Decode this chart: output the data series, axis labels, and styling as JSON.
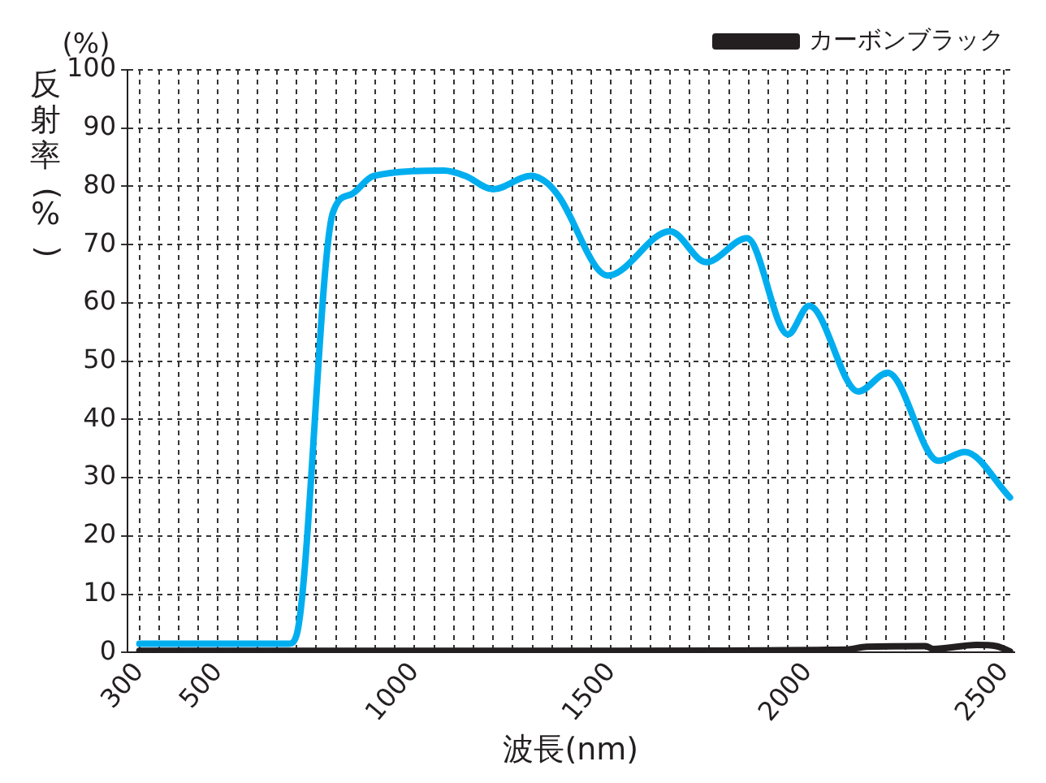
{
  "chart_data": {
    "type": "line",
    "ylabel": "反射率(%)",
    "xlabel": "波長(nm)",
    "annotations": [
      "(%)"
    ],
    "xlim": [
      270,
      2525
    ],
    "ylim": [
      0,
      100
    ],
    "yticks": [
      0,
      10,
      20,
      30,
      40,
      50,
      60,
      70,
      80,
      90,
      100
    ],
    "xticks": [
      300,
      {
        "value": 350,
        "label": null
      },
      {
        "value": 400,
        "label": null
      },
      {
        "value": 450,
        "label": null
      },
      500,
      {
        "value": 550,
        "label": null
      },
      {
        "value": 600,
        "label": null
      },
      {
        "value": 650,
        "label": null
      },
      {
        "value": 700,
        "label": null
      },
      {
        "value": 750,
        "label": null
      },
      {
        "value": 800,
        "label": null
      },
      {
        "value": 850,
        "label": null
      },
      {
        "value": 900,
        "label": null
      },
      {
        "value": 950,
        "label": null
      },
      1000,
      {
        "value": 1050,
        "label": null
      },
      {
        "value": 1100,
        "label": null
      },
      {
        "value": 1150,
        "label": null
      },
      {
        "value": 1200,
        "label": null
      },
      {
        "value": 1250,
        "label": null
      },
      {
        "value": 1300,
        "label": null
      },
      {
        "value": 1350,
        "label": null
      },
      {
        "value": 1400,
        "label": null
      },
      {
        "value": 1450,
        "label": null
      },
      1500,
      {
        "value": 1550,
        "label": null
      },
      {
        "value": 1600,
        "label": null
      },
      {
        "value": 1650,
        "label": null
      },
      {
        "value": 1700,
        "label": null
      },
      {
        "value": 1750,
        "label": null
      },
      {
        "value": 1800,
        "label": null
      },
      {
        "value": 1850,
        "label": null
      },
      {
        "value": 1900,
        "label": null
      },
      {
        "value": 1950,
        "label": null
      },
      2000,
      {
        "value": 2050,
        "label": null
      },
      {
        "value": 2100,
        "label": null
      },
      {
        "value": 2150,
        "label": null
      },
      {
        "value": 2200,
        "label": null
      },
      {
        "value": 2250,
        "label": null
      },
      {
        "value": 2300,
        "label": null
      },
      {
        "value": 2350,
        "label": null
      },
      {
        "value": 2400,
        "label": null
      },
      {
        "value": 2450,
        "label": null
      },
      2500
    ],
    "grid": true,
    "line_style": "solid",
    "marker": "none",
    "legend": "top right",
    "series": [
      {
        "color": "#00aeef",
        "x": [
          300,
          680,
          700,
          792,
          838,
          896,
          1075,
          1129,
          1200,
          1296,
          1337,
          1367,
          1492,
          1650,
          1742,
          1846,
          1950,
          2004,
          2129,
          2204,
          2333,
          2400,
          2515
        ],
        "values": [
          1.5,
          1.5,
          3,
          75.4,
          78.6,
          81.8,
          82.7,
          81.8,
          79.5,
          81.8,
          80.6,
          78.3,
          64.7,
          72.3,
          67,
          71.1,
          54.6,
          59.5,
          44.8,
          48,
          32.9,
          34.4,
          26.6
        ]
      },
      {
        "name": "カーボンブラック",
        "color": "#231f20",
        "x": [
          300,
          1000,
          1500,
          2100,
          2150,
          2300,
          2320,
          2430,
          2480,
          2515
        ],
        "values": [
          0.3,
          0.3,
          0.3,
          0.5,
          1,
          1.1,
          0.6,
          1.3,
          1.1,
          0.2
        ]
      }
    ]
  }
}
